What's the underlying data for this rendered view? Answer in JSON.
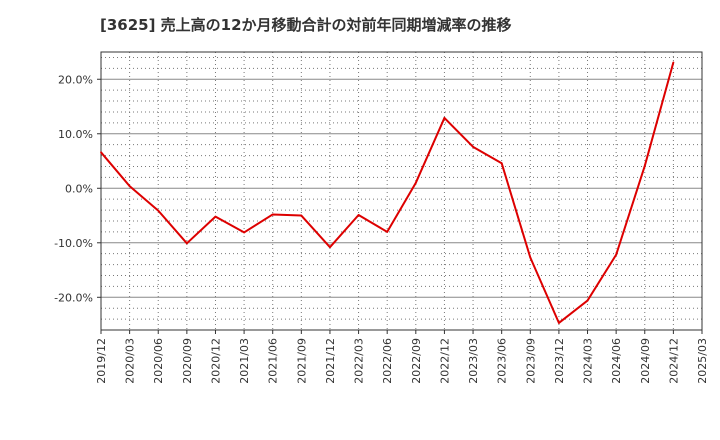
{
  "chart_data": {
    "type": "line",
    "title": "[3625]  売上高の12か月移動合計の対前年同期増減率の推移",
    "xlabel": "",
    "ylabel": "",
    "ylim": [
      -26,
      25
    ],
    "yticks": [
      20,
      10,
      0,
      -10,
      -20
    ],
    "ytick_labels": [
      "20.0%",
      "10.0%",
      "0.0%",
      "-10.0%",
      "-20.0%"
    ],
    "categories": [
      "2019/12",
      "2020/03",
      "2020/06",
      "2020/09",
      "2020/12",
      "2021/03",
      "2021/06",
      "2021/09",
      "2021/12",
      "2022/03",
      "2022/06",
      "2022/09",
      "2022/12",
      "2023/03",
      "2023/06",
      "2023/09",
      "2023/12",
      "2024/03",
      "2024/06",
      "2024/09",
      "2024/12",
      "2025/03"
    ],
    "grid": true,
    "series": [
      {
        "name": "増減率",
        "color": "#dd0000",
        "values": [
          6.6,
          0.4,
          -4.1,
          -10.1,
          -5.2,
          -8.1,
          -4.8,
          -5.0,
          -10.8,
          -4.9,
          -8.0,
          1.0,
          12.9,
          7.6,
          4.6,
          -12.7,
          -24.7,
          -20.6,
          -12.2,
          4.1,
          23.1,
          null
        ]
      }
    ]
  }
}
